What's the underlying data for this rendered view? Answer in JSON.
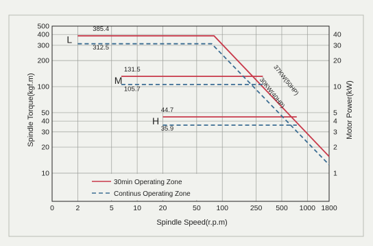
{
  "chart_data": {
    "type": "line",
    "x_axis": {
      "label": "Spindle Speed(r.p.m)",
      "scale": "log",
      "ticks": [
        {
          "v": 1,
          "t": "0"
        },
        {
          "v": 2,
          "t": "2"
        },
        {
          "v": 5,
          "t": "5"
        },
        {
          "v": 10,
          "t": "10"
        },
        {
          "v": 20,
          "t": "20"
        },
        {
          "v": 50,
          "t": "50"
        },
        {
          "v": 100,
          "t": "100"
        },
        {
          "v": 250,
          "t": "250"
        },
        {
          "v": 500,
          "t": "500"
        },
        {
          "v": 1000,
          "t": "1000"
        },
        {
          "v": 1800,
          "t": "1800"
        }
      ]
    },
    "y_left": {
      "label": "Spindle Torque(kgf.m)",
      "scale": "log",
      "ticks": [
        {
          "v": 10,
          "t": "10"
        },
        {
          "v": 20,
          "t": "20"
        },
        {
          "v": 30,
          "t": "30"
        },
        {
          "v": 40,
          "t": "40"
        },
        {
          "v": 50,
          "t": "50"
        },
        {
          "v": 100,
          "t": "100"
        },
        {
          "v": 200,
          "t": "200"
        },
        {
          "v": 300,
          "t": "300"
        },
        {
          "v": 400,
          "t": "400"
        },
        {
          "v": 500,
          "t": "500"
        }
      ]
    },
    "y_right": {
      "label": "Motor  Power(kW)",
      "scale": "log",
      "ticks": [
        {
          "v": 1,
          "t": "1"
        },
        {
          "v": 2,
          "t": "2"
        },
        {
          "v": 3,
          "t": "3"
        },
        {
          "v": 4,
          "t": "4"
        },
        {
          "v": 5,
          "t": "5"
        },
        {
          "v": 10,
          "t": "10"
        },
        {
          "v": 20,
          "t": "20"
        },
        {
          "v": 30,
          "t": "30"
        },
        {
          "v": 40,
          "t": "40"
        }
      ]
    },
    "gear_labels": [
      {
        "text": "L",
        "x": 1.6,
        "y": 350
      },
      {
        "text": "M",
        "x": 6.0,
        "y": 118
      },
      {
        "text": "H",
        "x": 16.5,
        "y": 40
      }
    ],
    "annotations": [
      {
        "text": "385.4",
        "x": 3.0,
        "y": 440
      },
      {
        "text": "312.5",
        "x": 3.0,
        "y": 268
      },
      {
        "text": "131.5",
        "x": 7.0,
        "y": 150
      },
      {
        "text": "105.7",
        "x": 7.0,
        "y": 89
      },
      {
        "text": "44.7",
        "x": 19,
        "y": 51
      },
      {
        "text": "35.9",
        "x": 19,
        "y": 31
      }
    ],
    "rotated_labels": [
      {
        "text": "37KW(50HP)",
        "x": 540,
        "y": 115,
        "angle": 52
      },
      {
        "text": "30KW(40HP)",
        "x": 370,
        "y": 82,
        "angle": 52
      }
    ],
    "series": [
      {
        "name": "30min Operating Zone",
        "color": "#c8394a",
        "dash": "solid",
        "segments": [
          [
            [
              2,
              385.4
            ],
            [
              80,
              385.4
            ],
            [
              1800,
              15.6
            ]
          ],
          [
            [
              6.5,
              131.5
            ],
            [
              300,
              131.5
            ]
          ],
          [
            [
              20,
              44.7
            ],
            [
              750,
              44.7
            ]
          ]
        ]
      },
      {
        "name": "Continus Operating Zone",
        "color": "#3a6c92",
        "dash": "dashed",
        "segments": [
          [
            [
              2,
              312.5
            ],
            [
              75,
              312.5
            ],
            [
              1800,
              12.5
            ]
          ],
          [
            [
              6.5,
              105.7
            ],
            [
              300,
              105.7
            ]
          ],
          [
            [
              20,
              35.9
            ],
            [
              750,
              35.9
            ]
          ]
        ]
      }
    ]
  }
}
